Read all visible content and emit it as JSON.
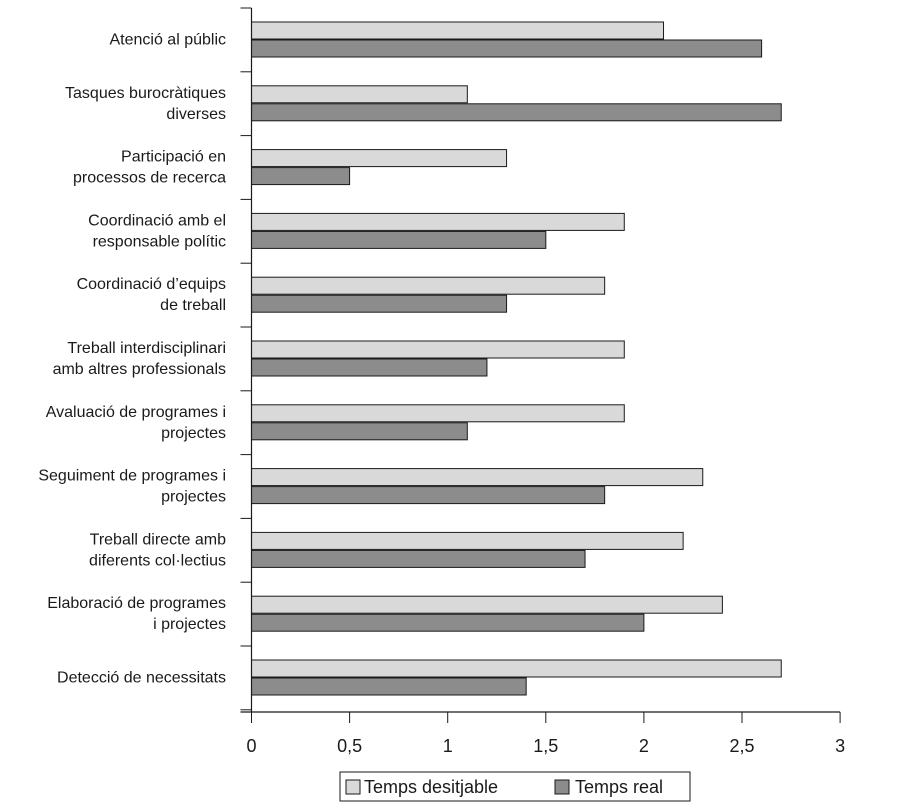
{
  "chart_data": {
    "type": "bar",
    "orientation": "horizontal",
    "categories": [
      [
        "Atenció al públic"
      ],
      [
        "Tasques burocràtiques",
        "diverses"
      ],
      [
        "Participació en",
        "processos de recerca"
      ],
      [
        "Coordinació amb el",
        "responsable polític"
      ],
      [
        "Coordinació d’equips",
        "de treball"
      ],
      [
        "Treball interdisciplinari",
        "amb altres professionals"
      ],
      [
        "Avaluació de programes i",
        "projectes"
      ],
      [
        "Seguiment de programes i",
        "projectes"
      ],
      [
        "Treball directe amb",
        "diferents col·lectius"
      ],
      [
        "Elaboració de programes",
        "i projectes"
      ],
      [
        "Detecció de necessitats"
      ]
    ],
    "series": [
      {
        "name": "Temps desitjable",
        "color": "#d9d9d9",
        "values": [
          2.1,
          1.1,
          1.3,
          1.9,
          1.8,
          1.9,
          1.9,
          2.3,
          2.2,
          2.4,
          2.7
        ]
      },
      {
        "name": "Temps real",
        "color": "#8c8c8c",
        "values": [
          2.6,
          2.7,
          0.5,
          1.5,
          1.3,
          1.2,
          1.1,
          1.8,
          1.7,
          2.0,
          1.4
        ]
      }
    ],
    "xticks": [
      "0",
      "0,5",
      "1",
      "1,5",
      "2",
      "2,5",
      "3"
    ],
    "xlim": [
      0,
      3
    ],
    "title": "",
    "xlabel": "",
    "ylabel": "",
    "grid": false,
    "legend_position": "bottom-center"
  }
}
